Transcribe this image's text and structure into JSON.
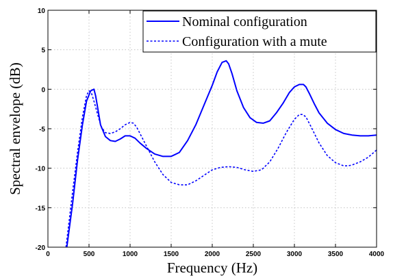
{
  "chart_data": {
    "type": "line",
    "title": "",
    "xlabel": "Frequency (Hz)",
    "ylabel": "Spectral envelope (dB)",
    "xlim": [
      0,
      4000
    ],
    "ylim": [
      -20,
      10
    ],
    "xticks": [
      0,
      500,
      1000,
      1500,
      2000,
      2500,
      3000,
      3500,
      4000
    ],
    "yticks": [
      -20,
      -15,
      -10,
      -5,
      0,
      5,
      10
    ],
    "grid": true,
    "legend_position": "top-right",
    "series": [
      {
        "name": "Nominal configuration",
        "style": "solid",
        "color": "#0000ff",
        "x": [
          230,
          300,
          360,
          420,
          470,
          520,
          560,
          580,
          600,
          640,
          700,
          760,
          820,
          880,
          940,
          1000,
          1060,
          1120,
          1200,
          1300,
          1400,
          1500,
          1600,
          1700,
          1800,
          1900,
          2000,
          2060,
          2120,
          2170,
          2200,
          2240,
          2300,
          2380,
          2460,
          2540,
          2620,
          2700,
          2780,
          2860,
          2940,
          3000,
          3060,
          3110,
          3140,
          3180,
          3240,
          3300,
          3400,
          3500,
          3600,
          3700,
          3800,
          3900,
          4000
        ],
        "y": [
          -20.0,
          -14.5,
          -9.0,
          -4.5,
          -1.5,
          -0.2,
          0.0,
          -0.8,
          -2.0,
          -4.5,
          -6.0,
          -6.5,
          -6.6,
          -6.3,
          -5.9,
          -5.9,
          -6.2,
          -6.8,
          -7.5,
          -8.2,
          -8.5,
          -8.5,
          -8.0,
          -6.5,
          -4.5,
          -2.0,
          0.5,
          2.2,
          3.4,
          3.6,
          3.2,
          2.0,
          -0.2,
          -2.3,
          -3.6,
          -4.2,
          -4.3,
          -4.0,
          -3.0,
          -1.8,
          -0.4,
          0.3,
          0.6,
          0.6,
          0.3,
          -0.5,
          -1.8,
          -3.0,
          -4.3,
          -5.1,
          -5.6,
          -5.8,
          -5.9,
          -5.9,
          -5.8
        ]
      },
      {
        "name": "Configuration with a mute",
        "style": "dashed",
        "color": "#0000ff",
        "x": [
          220,
          300,
          360,
          420,
          470,
          500,
          530,
          560,
          600,
          650,
          700,
          760,
          820,
          880,
          940,
          1000,
          1040,
          1080,
          1120,
          1200,
          1300,
          1400,
          1500,
          1600,
          1700,
          1800,
          1900,
          2000,
          2100,
          2200,
          2300,
          2400,
          2500,
          2600,
          2700,
          2800,
          2900,
          3000,
          3060,
          3100,
          3140,
          3200,
          3300,
          3400,
          3500,
          3600,
          3650,
          3700,
          3800,
          3900,
          4000
        ],
        "y": [
          -20.0,
          -13.0,
          -8.0,
          -3.5,
          -0.8,
          -0.2,
          -0.5,
          -1.5,
          -3.0,
          -4.8,
          -5.5,
          -5.6,
          -5.4,
          -5.0,
          -4.5,
          -4.2,
          -4.3,
          -4.8,
          -5.6,
          -7.2,
          -9.2,
          -10.8,
          -11.8,
          -12.1,
          -12.1,
          -11.6,
          -10.9,
          -10.2,
          -9.9,
          -9.8,
          -9.9,
          -10.2,
          -10.4,
          -10.2,
          -9.2,
          -7.5,
          -5.5,
          -3.8,
          -3.2,
          -3.2,
          -3.5,
          -4.7,
          -6.8,
          -8.4,
          -9.3,
          -9.7,
          -9.7,
          -9.6,
          -9.2,
          -8.6,
          -7.7
        ]
      }
    ]
  }
}
